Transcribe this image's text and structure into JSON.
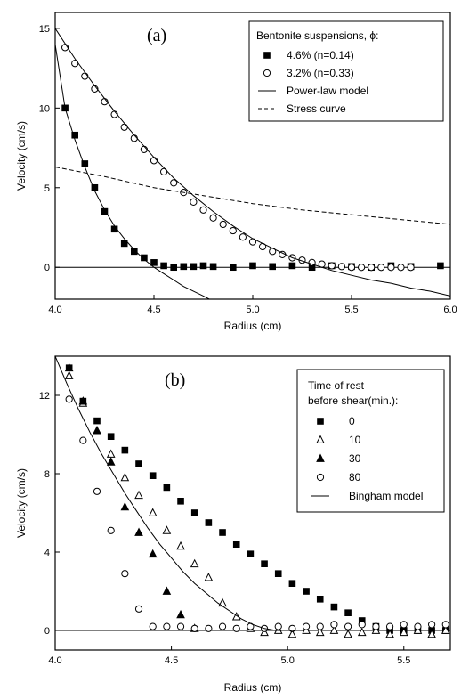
{
  "chart_data": [
    {
      "type": "scatter",
      "panel_label": "(a)",
      "xlabel": "Radius (cm)",
      "ylabel": "Velocity (cm/s)",
      "xlim": [
        4.0,
        6.0
      ],
      "ylim": [
        -2,
        16
      ],
      "xticks": [
        4.0,
        4.5,
        5.0,
        5.5,
        6.0
      ],
      "xtick_labels": [
        "4.0",
        "4.5",
        "5.0",
        "5.5",
        "6.0"
      ],
      "yticks": [
        0,
        5,
        10,
        15
      ],
      "ytick_labels": [
        "0",
        "5",
        "10",
        "15"
      ],
      "zero_line": true,
      "legend": {
        "title": "Bentonite suspensions, ϕ:",
        "placement": "top-right",
        "entries": [
          {
            "label": "4.6% (n=0.14)",
            "marker": "square-filled"
          },
          {
            "label": "3.2% (n=0.33)",
            "marker": "circle-open"
          },
          {
            "label": "Power-law model",
            "marker": "line-solid"
          },
          {
            "label": "Stress curve",
            "marker": "line-dashed"
          }
        ]
      },
      "series": [
        {
          "name": "4.6% (n=0.14)",
          "marker": "square-filled",
          "x": [
            4.05,
            4.1,
            4.15,
            4.2,
            4.25,
            4.3,
            4.35,
            4.4,
            4.45,
            4.5,
            4.55,
            4.6,
            4.65,
            4.7,
            4.75,
            4.8,
            4.9,
            5.0,
            5.1,
            5.2,
            5.3,
            5.4,
            5.5,
            5.6,
            5.7,
            5.8,
            5.95
          ],
          "y": [
            10.0,
            8.3,
            6.5,
            5.0,
            3.5,
            2.4,
            1.5,
            1.0,
            0.6,
            0.3,
            0.1,
            0.0,
            0.05,
            0.05,
            0.1,
            0.05,
            0.0,
            0.1,
            0.05,
            0.1,
            0.0,
            0.1,
            0.05,
            0.0,
            0.1,
            0.05,
            0.1
          ]
        },
        {
          "name": "3.2% (n=0.33)",
          "marker": "circle-open",
          "x": [
            4.05,
            4.1,
            4.15,
            4.2,
            4.25,
            4.3,
            4.35,
            4.4,
            4.45,
            4.5,
            4.55,
            4.6,
            4.65,
            4.7,
            4.75,
            4.8,
            4.85,
            4.9,
            4.95,
            5.0,
            5.05,
            5.1,
            5.15,
            5.2,
            5.25,
            5.3,
            5.35,
            5.4,
            5.45,
            5.5,
            5.55,
            5.6,
            5.65,
            5.7,
            5.75,
            5.8
          ],
          "y": [
            13.8,
            12.8,
            12.0,
            11.2,
            10.4,
            9.6,
            8.8,
            8.1,
            7.4,
            6.7,
            6.0,
            5.3,
            4.7,
            4.1,
            3.6,
            3.1,
            2.7,
            2.3,
            1.9,
            1.6,
            1.3,
            1.0,
            0.8,
            0.6,
            0.45,
            0.3,
            0.2,
            0.1,
            0.05,
            0.0,
            0.0,
            0.0,
            0.0,
            0.0,
            0.0,
            0.0
          ]
        },
        {
          "name": "Power-law model (4.6%)",
          "style": "line-solid",
          "x": [
            4.0,
            4.05,
            4.1,
            4.15,
            4.2,
            4.25,
            4.3,
            4.35,
            4.4,
            4.45,
            4.5,
            4.55,
            4.6,
            4.65,
            4.7,
            4.75,
            4.78
          ],
          "y": [
            14.0,
            10.0,
            8.0,
            6.3,
            4.8,
            3.6,
            2.6,
            1.8,
            1.1,
            0.5,
            0.0,
            -0.4,
            -0.8,
            -1.2,
            -1.5,
            -1.8,
            -2.0
          ]
        },
        {
          "name": "Power-law model (3.2%)",
          "style": "line-solid",
          "x": [
            4.0,
            4.1,
            4.2,
            4.3,
            4.4,
            4.5,
            4.6,
            4.7,
            4.8,
            4.9,
            5.0,
            5.1,
            5.2,
            5.3,
            5.4,
            5.5,
            5.6,
            5.7,
            5.8,
            5.9,
            6.0
          ],
          "y": [
            15.0,
            13.1,
            11.4,
            9.8,
            8.3,
            6.9,
            5.6,
            4.5,
            3.5,
            2.6,
            1.8,
            1.2,
            0.6,
            0.2,
            -0.2,
            -0.5,
            -0.8,
            -1.0,
            -1.3,
            -1.5,
            -1.8
          ]
        },
        {
          "name": "Stress curve",
          "style": "line-dashed",
          "x": [
            4.0,
            4.25,
            4.5,
            4.75,
            5.0,
            5.25,
            5.5,
            5.75,
            6.0
          ],
          "y": [
            6.3,
            5.7,
            5.0,
            4.5,
            4.0,
            3.6,
            3.3,
            3.0,
            2.7
          ]
        }
      ]
    },
    {
      "type": "scatter",
      "panel_label": "(b)",
      "xlabel": "Radius (cm)",
      "ylabel": "Velocity (cm/s)",
      "xlim": [
        4.0,
        5.7
      ],
      "ylim": [
        -1,
        14
      ],
      "xticks": [
        4.0,
        4.5,
        5.0,
        5.5
      ],
      "xtick_labels": [
        "4.0",
        "4.5",
        "5.0",
        "5.5"
      ],
      "yticks": [
        0,
        4,
        8,
        12
      ],
      "ytick_labels": [
        "0",
        "4",
        "8",
        "12"
      ],
      "zero_line": true,
      "legend": {
        "title_lines": [
          "Time of rest",
          "before shear(min.):"
        ],
        "placement": "top-right",
        "entries": [
          {
            "label": "0",
            "marker": "square-filled"
          },
          {
            "label": "10",
            "marker": "triangle-open"
          },
          {
            "label": "30",
            "marker": "triangle-filled"
          },
          {
            "label": "80",
            "marker": "circle-open"
          },
          {
            "label": "Bingham model",
            "marker": "line-solid"
          }
        ]
      },
      "series": [
        {
          "name": "0",
          "marker": "square-filled",
          "x": [
            4.06,
            4.12,
            4.18,
            4.24,
            4.3,
            4.36,
            4.42,
            4.48,
            4.54,
            4.6,
            4.66,
            4.72,
            4.78,
            4.84,
            4.9,
            4.96,
            5.02,
            5.08,
            5.14,
            5.2,
            5.26,
            5.32,
            5.38,
            5.44,
            5.5,
            5.56,
            5.62,
            5.68
          ],
          "y": [
            13.4,
            11.7,
            10.7,
            9.9,
            9.2,
            8.5,
            7.9,
            7.3,
            6.6,
            6.0,
            5.5,
            5.0,
            4.4,
            3.9,
            3.4,
            2.9,
            2.4,
            2.0,
            1.6,
            1.2,
            0.9,
            0.5,
            0.2,
            0.0,
            0.0,
            0.0,
            0.0,
            0.0
          ]
        },
        {
          "name": "10",
          "marker": "triangle-open",
          "x": [
            4.06,
            4.12,
            4.18,
            4.24,
            4.3,
            4.36,
            4.42,
            4.48,
            4.54,
            4.6,
            4.66,
            4.72,
            4.78,
            4.84,
            4.9,
            4.96,
            5.02,
            5.08,
            5.14,
            5.2,
            5.26,
            5.32,
            5.38,
            5.44,
            5.5,
            5.56,
            5.62,
            5.68
          ],
          "y": [
            13.0,
            11.6,
            10.2,
            9.0,
            7.8,
            6.9,
            6.0,
            5.1,
            4.3,
            3.4,
            2.7,
            1.4,
            0.7,
            0.1,
            -0.1,
            0.0,
            -0.2,
            0.0,
            -0.1,
            0.0,
            -0.2,
            -0.1,
            0.0,
            -0.2,
            -0.1,
            0.0,
            -0.2,
            0.0
          ]
        },
        {
          "name": "30",
          "marker": "triangle-filled",
          "x": [
            4.06,
            4.12,
            4.18,
            4.24,
            4.3,
            4.36,
            4.42,
            4.48,
            4.54,
            4.6
          ],
          "y": [
            13.4,
            11.7,
            10.2,
            8.6,
            6.3,
            5.0,
            3.9,
            2.0,
            0.8,
            0.1
          ]
        },
        {
          "name": "80",
          "marker": "circle-open",
          "x": [
            4.06,
            4.12,
            4.18,
            4.24,
            4.3,
            4.36,
            4.42,
            4.48,
            4.54,
            4.6,
            4.66,
            4.72,
            4.78,
            4.84,
            4.9,
            4.96,
            5.02,
            5.08,
            5.14,
            5.2,
            5.26,
            5.32,
            5.38,
            5.44,
            5.5,
            5.56,
            5.62,
            5.68
          ],
          "y": [
            11.8,
            9.7,
            7.1,
            5.1,
            2.9,
            1.1,
            0.2,
            0.2,
            0.2,
            0.1,
            0.1,
            0.2,
            0.1,
            0.2,
            0.1,
            0.2,
            0.1,
            0.2,
            0.2,
            0.3,
            0.2,
            0.3,
            0.2,
            0.2,
            0.3,
            0.2,
            0.3,
            0.3
          ]
        },
        {
          "name": "Bingham model",
          "style": "line-solid",
          "x": [
            4.0,
            4.05,
            4.1,
            4.15,
            4.2,
            4.25,
            4.3,
            4.35,
            4.4,
            4.45,
            4.5,
            4.55,
            4.6,
            4.65,
            4.7,
            4.75,
            4.8,
            4.85,
            4.9,
            4.95,
            5.0,
            5.05
          ],
          "y": [
            14.0,
            12.6,
            11.3,
            10.1,
            9.0,
            8.0,
            7.0,
            6.1,
            5.2,
            4.4,
            3.7,
            3.0,
            2.4,
            1.9,
            1.4,
            1.0,
            0.6,
            0.3,
            0.1,
            0.0,
            0.0,
            0.0
          ]
        }
      ]
    }
  ]
}
